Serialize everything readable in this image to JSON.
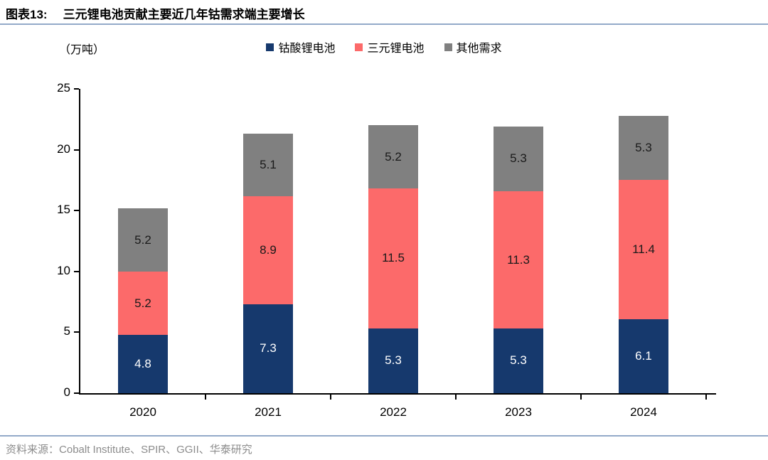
{
  "header": {
    "figure_label": "图表13:",
    "title": "三元锂电池贡献主要近几年钴需求端主要增长"
  },
  "chart_data": {
    "type": "bar",
    "stacked": true,
    "title": "三元锂电池贡献主要近几年钴需求端主要增长",
    "unit_label": "（万吨）",
    "categories": [
      "2020",
      "2021",
      "2022",
      "2023",
      "2024"
    ],
    "series": [
      {
        "id": "cobalt-oxide-battery",
        "name": "钴酸锂电池",
        "color": "#16396d",
        "label_color": "#ffffff",
        "values": [
          4.8,
          7.3,
          5.3,
          5.3,
          6.1
        ]
      },
      {
        "id": "ternary-battery",
        "name": "三元锂电池",
        "color": "#fc6a6a",
        "label_color": "#1a1a1a",
        "values": [
          5.2,
          8.9,
          11.5,
          11.3,
          11.4
        ]
      },
      {
        "id": "other-demand",
        "name": "其他需求",
        "color": "#808080",
        "label_color": "#1a1a1a",
        "values": [
          5.2,
          5.1,
          5.2,
          5.3,
          5.3
        ]
      }
    ],
    "totals": [
      15.2,
      21.3,
      22.0,
      21.9,
      22.8
    ],
    "ylim": [
      0,
      25
    ],
    "yticks": [
      0,
      5,
      10,
      15,
      20,
      25
    ],
    "xlabel": "",
    "ylabel": "万吨",
    "grid": false,
    "legend_position": "top"
  },
  "colors": {
    "divider": "#93aac9",
    "footer_text": "#8c8c8c",
    "axis": "#000000"
  },
  "footer": {
    "source_label": "资料来源：",
    "source_text": "Cobalt Institute、SPIR、GGII、华泰研究"
  }
}
